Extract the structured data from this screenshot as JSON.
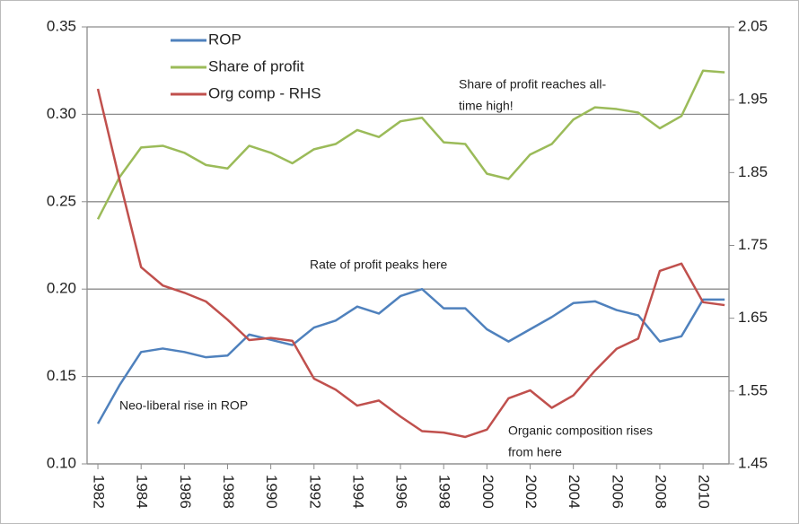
{
  "chart_data": {
    "type": "line",
    "x": [
      1982,
      1983,
      1984,
      1985,
      1986,
      1987,
      1988,
      1989,
      1990,
      1991,
      1992,
      1993,
      1994,
      1995,
      1996,
      1997,
      1998,
      1999,
      2000,
      2001,
      2002,
      2003,
      2004,
      2005,
      2006,
      2007,
      2008,
      2009,
      2010,
      2011
    ],
    "xlim": [
      1981.5,
      2011.2
    ],
    "xticks": [
      1982,
      1984,
      1986,
      1988,
      1990,
      1992,
      1994,
      1996,
      1998,
      2000,
      2002,
      2004,
      2006,
      2008,
      2010
    ],
    "ylim": [
      0.1,
      0.35
    ],
    "yticks": [
      {
        "value": 0.1,
        "label": "0.10"
      },
      0.15,
      {
        "value": 0.2,
        "label": "0.20"
      },
      0.25,
      {
        "value": 0.3,
        "label": "0.30"
      },
      0.35
    ],
    "y2lim": [
      1.45,
      2.05
    ],
    "y2ticks": [
      1.45,
      1.55,
      1.65,
      1.75,
      1.85,
      1.95,
      2.05
    ],
    "grid": true,
    "legend": "top-left",
    "series": [
      {
        "name": "ROP",
        "color": "#4f81bd",
        "values": [
          0.123,
          0.145,
          0.164,
          0.166,
          0.164,
          0.161,
          0.162,
          0.174,
          0.171,
          0.168,
          0.178,
          0.182,
          0.19,
          0.186,
          0.196,
          0.2,
          0.189,
          0.189,
          0.177,
          0.17,
          0.177,
          0.184,
          0.192,
          0.193,
          0.188,
          0.185,
          0.17,
          0.173,
          0.194,
          0.194
        ]
      },
      {
        "name": "Share of profit",
        "color": "#9bbb59",
        "values": [
          0.24,
          0.264,
          0.281,
          0.282,
          0.278,
          0.271,
          0.269,
          0.282,
          0.278,
          0.272,
          0.28,
          0.283,
          0.291,
          0.287,
          0.296,
          0.298,
          0.284,
          0.283,
          0.266,
          0.263,
          0.277,
          0.283,
          0.297,
          0.304,
          0.303,
          0.301,
          0.292,
          0.299,
          0.325,
          0.324
        ]
      },
      {
        "name": "Org comp - RHS",
        "color": "#c0504d",
        "axis": "y2",
        "values": [
          1.965,
          1.84,
          1.72,
          1.695,
          1.685,
          1.673,
          1.648,
          1.62,
          1.623,
          1.619,
          1.567,
          1.552,
          1.53,
          1.537,
          1.515,
          1.495,
          1.493,
          1.487,
          1.497,
          1.54,
          1.551,
          1.527,
          1.544,
          1.578,
          1.608,
          1.622,
          1.715,
          1.725,
          1.672,
          1.668
        ]
      }
    ],
    "annotations": [
      {
        "lines": [
          "Share of profit reaches all-",
          "time high!"
        ]
      },
      {
        "lines": [
          "Rate of profit peaks here"
        ]
      },
      {
        "lines": [
          "Neo-liberal rise in ROP"
        ]
      },
      {
        "lines": [
          "Organic composition rises",
          "from here"
        ]
      }
    ]
  }
}
